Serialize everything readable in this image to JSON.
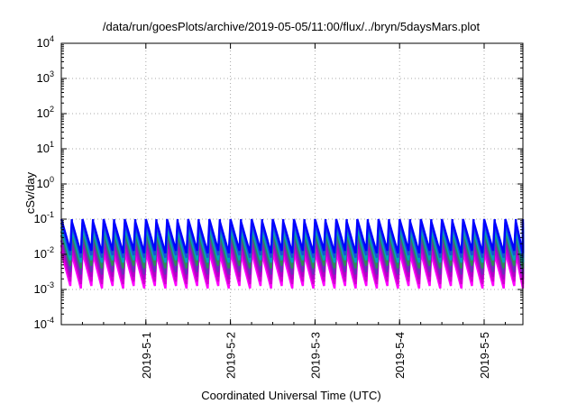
{
  "chart_data": {
    "type": "line",
    "title": "/data/run/goesPlots/archive/2019-05-05/11:00/flux/../bryn/5daysMars.plot",
    "xlabel": "Coordinated Universal Time (UTC)",
    "ylabel": "cSv/day",
    "yscale": "log",
    "ylim": [
      0.0001,
      10000
    ],
    "xlim": [
      "2019-04-30 00:00",
      "2019-05-05 11:00"
    ],
    "x_ticks": [
      "2019-5-1",
      "2019-5-2",
      "2019-5-3",
      "2019-5-4",
      "2019-5-5"
    ],
    "y_ticks": [
      {
        "base": "10",
        "exp": "-4"
      },
      {
        "base": "10",
        "exp": "-3"
      },
      {
        "base": "10",
        "exp": "-2"
      },
      {
        "base": "10",
        "exp": "-1"
      },
      {
        "base": "10",
        "exp": "0"
      },
      {
        "base": "10",
        "exp": "1"
      },
      {
        "base": "10",
        "exp": "2"
      },
      {
        "base": "10",
        "exp": "3"
      },
      {
        "base": "10",
        "exp": "4"
      }
    ],
    "grid": true,
    "legend": "none",
    "pattern": {
      "period_hours": 3,
      "peak_values": [
        0.1,
        0.08,
        0.06,
        0.045,
        0.035,
        0.025,
        0.018,
        0.012
      ],
      "trough_values": [
        0.012,
        0.009,
        0.0065,
        0.0045,
        0.003,
        0.0022,
        0.0016,
        0.0012
      ]
    },
    "series": [
      {
        "color": "#0000ff"
      },
      {
        "color": "#1a4fd6"
      },
      {
        "color": "#00a0c0"
      },
      {
        "color": "#2e8b57"
      },
      {
        "color": "#6a2fb8"
      },
      {
        "color": "#b000c8"
      },
      {
        "color": "#d000d0"
      },
      {
        "color": "#ff00ff"
      }
    ]
  }
}
